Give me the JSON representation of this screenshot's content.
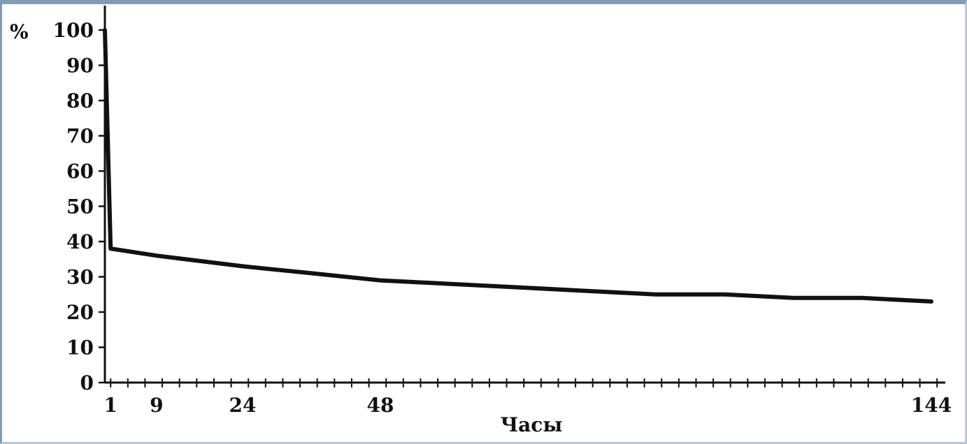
{
  "chart_data": {
    "type": "line",
    "ylabel": "%",
    "xlabel": "Часы",
    "ylim": [
      0,
      100
    ],
    "xlim": [
      0,
      144
    ],
    "y_ticks": [
      "0",
      "10",
      "20",
      "30",
      "40",
      "50",
      "60",
      "70",
      "80",
      "90",
      "100"
    ],
    "x_tick_labels": [
      {
        "value": 1,
        "label": "1"
      },
      {
        "value": 9,
        "label": "9"
      },
      {
        "value": 24,
        "label": "24"
      },
      {
        "value": 48,
        "label": "48"
      },
      {
        "value": 144,
        "label": "144"
      }
    ],
    "x_minor_tick_step": 3,
    "series": [
      {
        "x": [
          0,
          1,
          9,
          24,
          36,
          48,
          60,
          72,
          84,
          96,
          108,
          120,
          132,
          144
        ],
        "y": [
          100,
          38,
          36,
          33,
          31,
          29,
          28,
          27,
          26,
          25,
          25,
          24,
          24,
          23
        ],
        "color": "#111111"
      }
    ],
    "grid": false,
    "legend": "none"
  }
}
